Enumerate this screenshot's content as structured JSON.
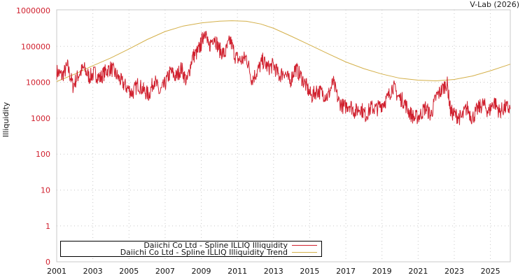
{
  "credit": "V-Lab (2026)",
  "chart_data": {
    "type": "line",
    "title": "",
    "xlabel": "",
    "ylabel": "Illiquidity",
    "yscale": "log",
    "ylim": [
      0,
      1000000
    ],
    "xlim": [
      2001,
      2026.1
    ],
    "y_ticks": [
      "1000000",
      "100000",
      "10000",
      "1000",
      "100",
      "10",
      "1",
      "0"
    ],
    "x_ticks": [
      "2001",
      "2003",
      "2005",
      "2007",
      "2009",
      "2011",
      "2013",
      "2015",
      "2017",
      "2019",
      "2021",
      "2023",
      "2025"
    ],
    "grid": true,
    "legend_position": "bottom-left inside",
    "series": [
      {
        "name": "Daiichi Co Ltd - Spline ILLIQ Illiquidity",
        "color": "#d0202e",
        "points": [
          [
            2001.0,
            20000
          ],
          [
            2001.3,
            15000
          ],
          [
            2001.6,
            28000
          ],
          [
            2001.9,
            8000
          ],
          [
            2002.2,
            16000
          ],
          [
            2002.5,
            25000
          ],
          [
            2002.8,
            14000
          ],
          [
            2003.1,
            18000
          ],
          [
            2003.4,
            13000
          ],
          [
            2003.7,
            20000
          ],
          [
            2004.0,
            25000
          ],
          [
            2004.3,
            16000
          ],
          [
            2004.6,
            10000
          ],
          [
            2004.9,
            7000
          ],
          [
            2005.2,
            5000
          ],
          [
            2005.5,
            9000
          ],
          [
            2005.8,
            6000
          ],
          [
            2006.1,
            4500
          ],
          [
            2006.4,
            12000
          ],
          [
            2006.7,
            5000
          ],
          [
            2007.0,
            9000
          ],
          [
            2007.3,
            20000
          ],
          [
            2007.6,
            14000
          ],
          [
            2007.9,
            25000
          ],
          [
            2008.2,
            10000
          ],
          [
            2008.5,
            50000
          ],
          [
            2008.8,
            70000
          ],
          [
            2009.0,
            120000
          ],
          [
            2009.2,
            300000
          ],
          [
            2009.4,
            90000
          ],
          [
            2009.7,
            200000
          ],
          [
            2010.0,
            80000
          ],
          [
            2010.3,
            60000
          ],
          [
            2010.6,
            150000
          ],
          [
            2010.9,
            50000
          ],
          [
            2011.2,
            40000
          ],
          [
            2011.5,
            50000
          ],
          [
            2011.8,
            12000
          ],
          [
            2012.1,
            20000
          ],
          [
            2012.4,
            40000
          ],
          [
            2012.7,
            25000
          ],
          [
            2013.0,
            30000
          ],
          [
            2013.3,
            15000
          ],
          [
            2013.6,
            20000
          ],
          [
            2013.9,
            10000
          ],
          [
            2014.2,
            25000
          ],
          [
            2014.5,
            15000
          ],
          [
            2014.8,
            8000
          ],
          [
            2015.1,
            4000
          ],
          [
            2015.4,
            6000
          ],
          [
            2015.7,
            5000
          ],
          [
            2016.0,
            4000
          ],
          [
            2016.3,
            10000
          ],
          [
            2016.6,
            3000
          ],
          [
            2016.9,
            2000
          ],
          [
            2017.2,
            2500
          ],
          [
            2017.5,
            1500
          ],
          [
            2017.8,
            2000
          ],
          [
            2018.1,
            1200
          ],
          [
            2018.4,
            2000
          ],
          [
            2018.7,
            1800
          ],
          [
            2019.0,
            2500
          ],
          [
            2019.3,
            3500
          ],
          [
            2019.6,
            8000
          ],
          [
            2019.9,
            4000
          ],
          [
            2020.2,
            3000
          ],
          [
            2020.5,
            1500
          ],
          [
            2020.8,
            1000
          ],
          [
            2021.1,
            1200
          ],
          [
            2021.4,
            2000
          ],
          [
            2021.7,
            1200
          ],
          [
            2022.0,
            4000
          ],
          [
            2022.3,
            6000
          ],
          [
            2022.6,
            10000
          ],
          [
            2022.8,
            1500
          ],
          [
            2023.1,
            1200
          ],
          [
            2023.4,
            1000
          ],
          [
            2023.7,
            2000
          ],
          [
            2024.0,
            1000
          ],
          [
            2024.3,
            1800
          ],
          [
            2024.6,
            2500
          ],
          [
            2024.9,
            1500
          ],
          [
            2025.2,
            3000
          ],
          [
            2025.5,
            1500
          ],
          [
            2025.8,
            2000
          ],
          [
            2026.1,
            1800
          ]
        ]
      },
      {
        "name": "Daiichi Co Ltd - Spline ILLIQ Illiquidity Trend",
        "color": "#d4b04a",
        "points": [
          [
            2001.0,
            10500
          ],
          [
            2002.0,
            17000
          ],
          [
            2003.0,
            29000
          ],
          [
            2004.0,
            48000
          ],
          [
            2005.0,
            85000
          ],
          [
            2006.0,
            155000
          ],
          [
            2007.0,
            260000
          ],
          [
            2008.0,
            370000
          ],
          [
            2009.0,
            450000
          ],
          [
            2010.0,
            505000
          ],
          [
            2010.7,
            520000
          ],
          [
            2011.5,
            500000
          ],
          [
            2012.3,
            420000
          ],
          [
            2013.0,
            320000
          ],
          [
            2014.0,
            190000
          ],
          [
            2015.0,
            110000
          ],
          [
            2016.0,
            63000
          ],
          [
            2017.0,
            37000
          ],
          [
            2018.0,
            24000
          ],
          [
            2019.0,
            17000
          ],
          [
            2020.0,
            13000
          ],
          [
            2021.0,
            11500
          ],
          [
            2022.0,
            11000
          ],
          [
            2023.0,
            12000
          ],
          [
            2024.0,
            15000
          ],
          [
            2025.0,
            21000
          ],
          [
            2026.1,
            32000
          ]
        ]
      }
    ]
  }
}
